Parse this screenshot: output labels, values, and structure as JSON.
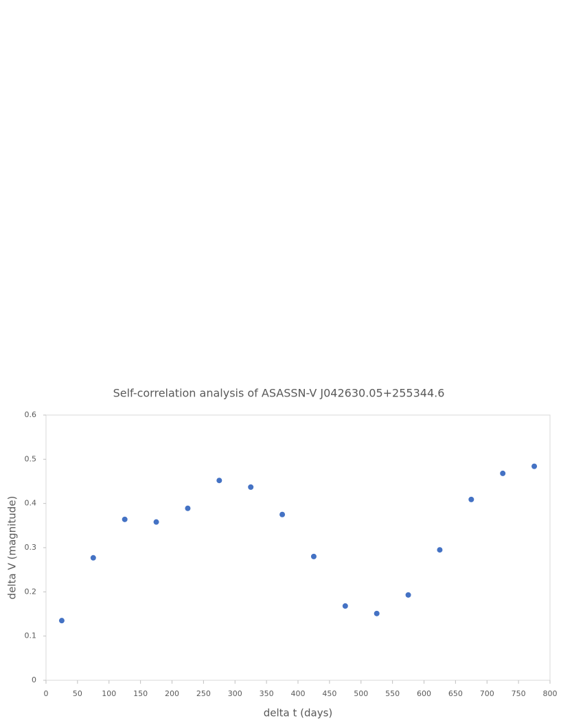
{
  "chart_data": {
    "type": "scatter",
    "title": "Self-correlation analysis of ASASSN-V J042630.05+255344.6",
    "x_label": "delta t (days)",
    "y_label": "delta V (magnitude)",
    "x": [
      25,
      75,
      125,
      175,
      225,
      275,
      325,
      375,
      425,
      475,
      525,
      575,
      625,
      675,
      725,
      775
    ],
    "series": [
      {
        "name": "delta V",
        "color": "#4472c4",
        "values": [
          0.135,
          0.277,
          0.364,
          0.358,
          0.389,
          0.452,
          0.437,
          0.375,
          0.28,
          0.168,
          0.151,
          0.193,
          0.295,
          0.409,
          0.468,
          0.484
        ]
      }
    ],
    "xlim": [
      0,
      800
    ],
    "xticks": [
      0,
      50,
      100,
      150,
      200,
      250,
      300,
      350,
      400,
      450,
      500,
      550,
      600,
      650,
      700,
      750,
      800
    ],
    "ylim": [
      0,
      0.6
    ],
    "yticks": [
      0,
      0.1,
      0.2,
      0.3,
      0.4,
      0.5,
      0.6
    ]
  }
}
